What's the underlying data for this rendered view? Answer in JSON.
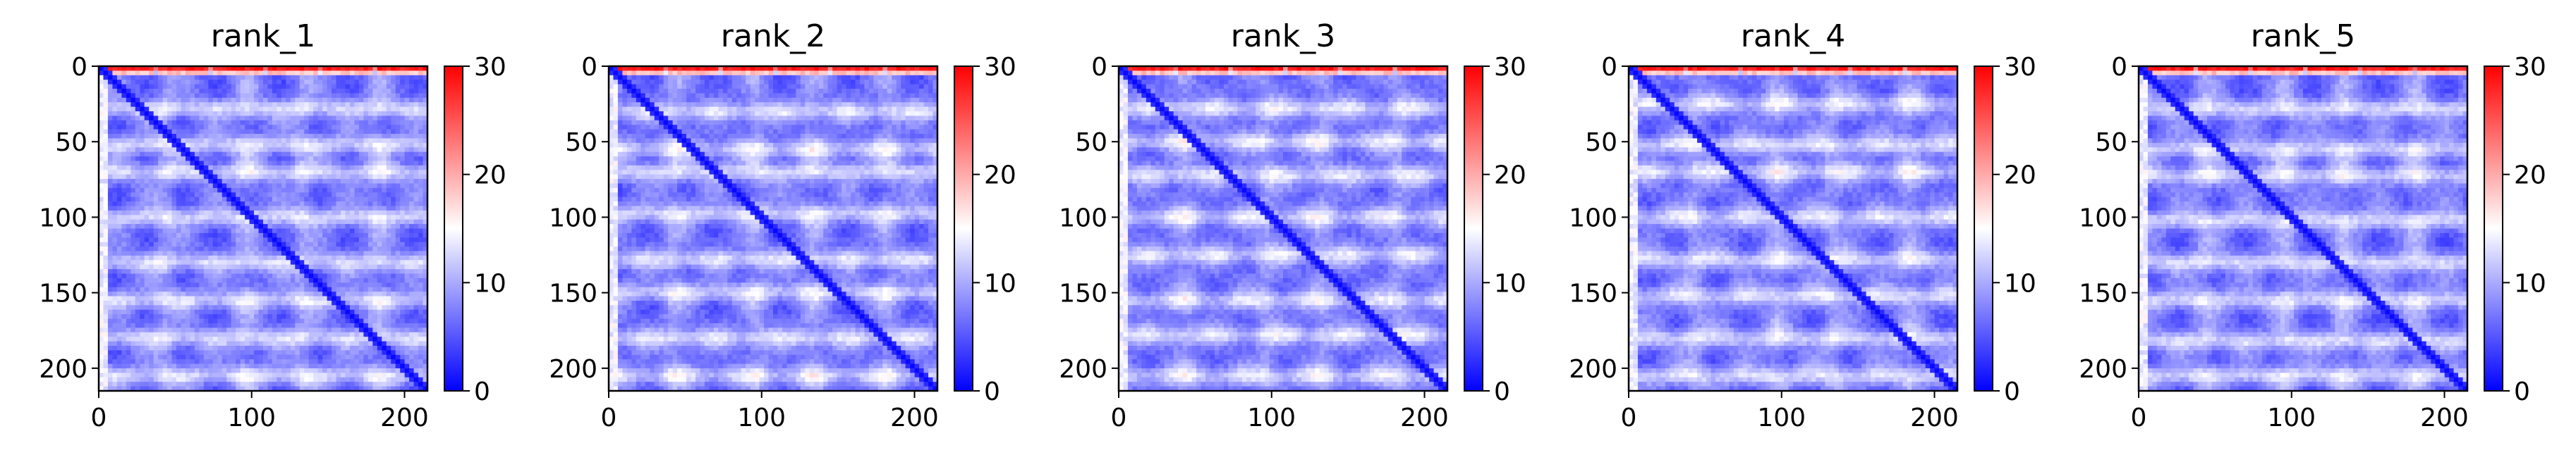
{
  "chart_data": [
    {
      "type": "heatmap",
      "title": "rank_1",
      "xlabel": "",
      "ylabel": "",
      "x_ticks": [
        0,
        100,
        200
      ],
      "y_ticks": [
        0,
        50,
        100,
        150,
        200
      ],
      "matrix_size": 215,
      "colorbar": {
        "min": 0,
        "max": 30,
        "ticks": [
          0,
          10,
          20,
          30
        ],
        "colormap": [
          "#0000ff",
          "#ffffff",
          "#ff0000"
        ]
      },
      "features": {
        "diagonal": "low",
        "first_rows_near_max": true,
        "horizontal_band_rows": [
          28,
          52,
          70,
          100,
          130,
          155,
          180,
          205
        ]
      }
    },
    {
      "type": "heatmap",
      "title": "rank_2",
      "xlabel": "",
      "ylabel": "",
      "x_ticks": [
        0,
        100,
        200
      ],
      "y_ticks": [
        0,
        50,
        100,
        150,
        200
      ],
      "matrix_size": 215,
      "colorbar": {
        "min": 0,
        "max": 30,
        "ticks": [
          0,
          10,
          20,
          30
        ],
        "colormap": [
          "#0000ff",
          "#ffffff",
          "#ff0000"
        ]
      },
      "features": {
        "diagonal": "low",
        "first_rows_near_max": true,
        "horizontal_band_rows": [
          30,
          55,
          70,
          98,
          128,
          150,
          180,
          205
        ]
      }
    },
    {
      "type": "heatmap",
      "title": "rank_3",
      "xlabel": "",
      "ylabel": "",
      "x_ticks": [
        0,
        100,
        200
      ],
      "y_ticks": [
        0,
        50,
        100,
        150,
        200
      ],
      "matrix_size": 215,
      "colorbar": {
        "min": 0,
        "max": 30,
        "ticks": [
          0,
          10,
          20,
          30
        ],
        "colormap": [
          "#0000ff",
          "#ffffff",
          "#ff0000"
        ]
      },
      "features": {
        "diagonal": "low",
        "first_rows_near_max": true,
        "horizontal_band_rows": [
          28,
          50,
          72,
          100,
          125,
          155,
          178,
          205
        ]
      }
    },
    {
      "type": "heatmap",
      "title": "rank_4",
      "xlabel": "",
      "ylabel": "",
      "x_ticks": [
        0,
        100,
        200
      ],
      "y_ticks": [
        0,
        50,
        100,
        150,
        200
      ],
      "matrix_size": 215,
      "colorbar": {
        "min": 0,
        "max": 30,
        "ticks": [
          0,
          10,
          20,
          30
        ],
        "colormap": [
          "#0000ff",
          "#ffffff",
          "#ff0000"
        ]
      },
      "features": {
        "diagonal": "low",
        "first_rows_near_max": true,
        "horizontal_band_rows": [
          25,
          52,
          70,
          100,
          128,
          152,
          180,
          205
        ]
      }
    },
    {
      "type": "heatmap",
      "title": "rank_5",
      "xlabel": "",
      "ylabel": "",
      "x_ticks": [
        0,
        100,
        200
      ],
      "y_ticks": [
        0,
        50,
        100,
        150,
        200
      ],
      "matrix_size": 215,
      "colorbar": {
        "min": 0,
        "max": 30,
        "ticks": [
          0,
          10,
          20,
          30
        ],
        "colormap": [
          "#0000ff",
          "#ffffff",
          "#ff0000"
        ]
      },
      "features": {
        "diagonal": "low",
        "first_rows_near_max": true,
        "horizontal_band_rows": [
          28,
          55,
          72,
          102,
          130,
          155,
          182,
          205
        ]
      }
    }
  ]
}
